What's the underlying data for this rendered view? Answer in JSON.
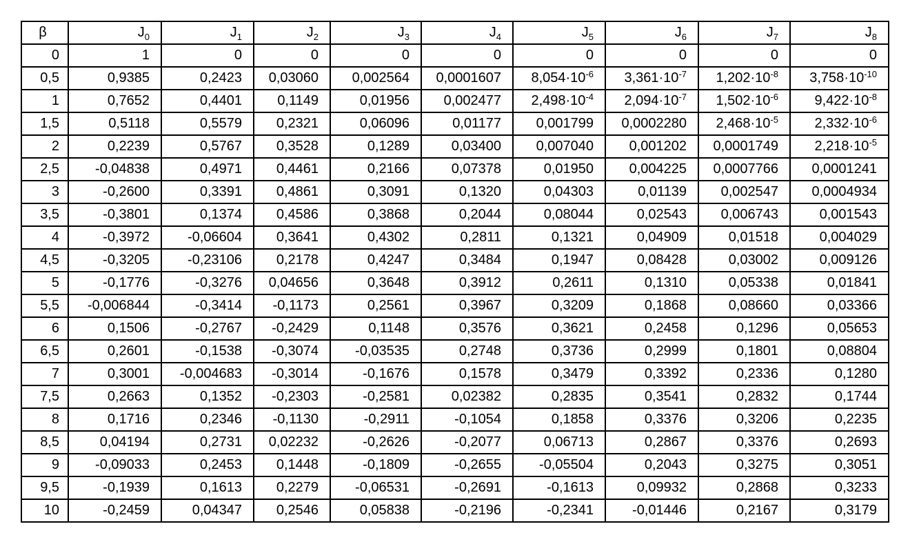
{
  "colors": {
    "background": "#ffffff",
    "border": "#000000",
    "text": "#000000"
  },
  "table": {
    "description": "Table of Bessel function values J_n(β)",
    "columns": [
      "β",
      "J_0",
      "J_1",
      "J_2",
      "J_3",
      "J_4",
      "J_5",
      "J_6",
      "J_7",
      "J_8"
    ],
    "rows": [
      [
        "0",
        "1",
        "0",
        "0",
        "0",
        "0",
        "0",
        "0",
        "0",
        "0"
      ],
      [
        "0,5",
        "0,9385",
        "0,2423",
        "0,03060",
        "0,002564",
        "0,0001607",
        "8,054·10^-6",
        "3,361·10^-7",
        "1,202·10^-8",
        "3,758·10^-10"
      ],
      [
        "1",
        "0,7652",
        "0,4401",
        "0,1149",
        "0,01956",
        "0,002477",
        "2,498·10^-4",
        "2,094·10^-7",
        "1,502·10^-6",
        "9,422·10^-8"
      ],
      [
        "1,5",
        "0,5118",
        "0,5579",
        "0,2321",
        "0,06096",
        "0,01177",
        "0,001799",
        "0,0002280",
        "2,468·10^-5",
        "2,332·10^-6"
      ],
      [
        "2",
        "0,2239",
        "0,5767",
        "0,3528",
        "0,1289",
        "0,03400",
        "0,007040",
        "0,001202",
        "0,0001749",
        "2,218·10^-5"
      ],
      [
        "2,5",
        "-0,04838",
        "0,4971",
        "0,4461",
        "0,2166",
        "0,07378",
        "0,01950",
        "0,004225",
        "0,0007766",
        "0,0001241"
      ],
      [
        "3",
        "-0,2600",
        "0,3391",
        "0,4861",
        "0,3091",
        "0,1320",
        "0,04303",
        "0,01139",
        "0,002547",
        "0,0004934"
      ],
      [
        "3,5",
        "-0,3801",
        "0,1374",
        "0,4586",
        "0,3868",
        "0,2044",
        "0,08044",
        "0,02543",
        "0,006743",
        "0,001543"
      ],
      [
        "4",
        "-0,3972",
        "-0,06604",
        "0,3641",
        "0,4302",
        "0,2811",
        "0,1321",
        "0,04909",
        "0,01518",
        "0,004029"
      ],
      [
        "4,5",
        "-0,3205",
        "-0,23106",
        "0,2178",
        "0,4247",
        "0,3484",
        "0,1947",
        "0,08428",
        "0,03002",
        "0,009126"
      ],
      [
        "5",
        "-0,1776",
        "-0,3276",
        "0,04656",
        "0,3648",
        "0,3912",
        "0,2611",
        "0,1310",
        "0,05338",
        "0,01841"
      ],
      [
        "5,5",
        "-0,006844",
        "-0,3414",
        "-0,1173",
        "0,2561",
        "0,3967",
        "0,3209",
        "0,1868",
        "0,08660",
        "0,03366"
      ],
      [
        "6",
        "0,1506",
        "-0,2767",
        "-0,2429",
        "0,1148",
        "0,3576",
        "0,3621",
        "0,2458",
        "0,1296",
        "0,05653"
      ],
      [
        "6,5",
        "0,2601",
        "-0,1538",
        "-0,3074",
        "-0,03535",
        "0,2748",
        "0,3736",
        "0,2999",
        "0,1801",
        "0,08804"
      ],
      [
        "7",
        "0,3001",
        "-0,004683",
        "-0,3014",
        "-0,1676",
        "0,1578",
        "0,3479",
        "0,3392",
        "0,2336",
        "0,1280"
      ],
      [
        "7,5",
        "0,2663",
        "0,1352",
        "-0,2303",
        "-0,2581",
        "0,02382",
        "0,2835",
        "0,3541",
        "0,2832",
        "0,1744"
      ],
      [
        "8",
        "0,1716",
        "0,2346",
        "-0,1130",
        "-0,2911",
        "-0,1054",
        "0,1858",
        "0,3376",
        "0,3206",
        "0,2235"
      ],
      [
        "8,5",
        "0,04194",
        "0,2731",
        "0,02232",
        "-0,2626",
        "-0,2077",
        "0,06713",
        "0,2867",
        "0,3376",
        "0,2693"
      ],
      [
        "9",
        "-0,09033",
        "0,2453",
        "0,1448",
        "-0,1809",
        "-0,2655",
        "-0,05504",
        "0,2043",
        "0,3275",
        "0,3051"
      ],
      [
        "9,5",
        "-0,1939",
        "0,1613",
        "0,2279",
        "-0,06531",
        "-0,2691",
        "-0,1613",
        "0,09932",
        "0,2868",
        "0,3233"
      ],
      [
        "10",
        "-0,2459",
        "0,04347",
        "0,2546",
        "0,05838",
        "-0,2196",
        "-0,2341",
        "-0,01446",
        "0,2167",
        "0,3179"
      ]
    ]
  }
}
